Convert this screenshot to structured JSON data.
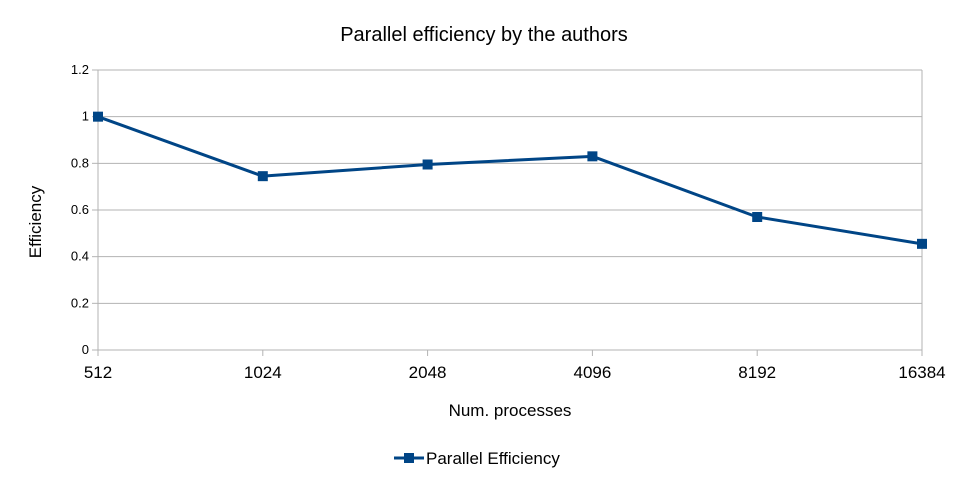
{
  "chart_data": {
    "type": "line",
    "title": "Parallel efficiency by the authors",
    "xlabel": "Num. processes",
    "ylabel": "Efficiency",
    "categories": [
      "512",
      "1024",
      "2048",
      "4096",
      "8192",
      "16384"
    ],
    "y_ticks": [
      "0",
      "0.2",
      "0.4",
      "0.6",
      "0.8",
      "1",
      "1.2"
    ],
    "ylim": [
      0,
      1.2
    ],
    "grid": true,
    "legend_position": "bottom",
    "series": [
      {
        "name": "Parallel Efficiency",
        "values": [
          1.0,
          0.745,
          0.795,
          0.83,
          0.57,
          0.455
        ],
        "color": "#004586",
        "marker": "square"
      }
    ]
  }
}
